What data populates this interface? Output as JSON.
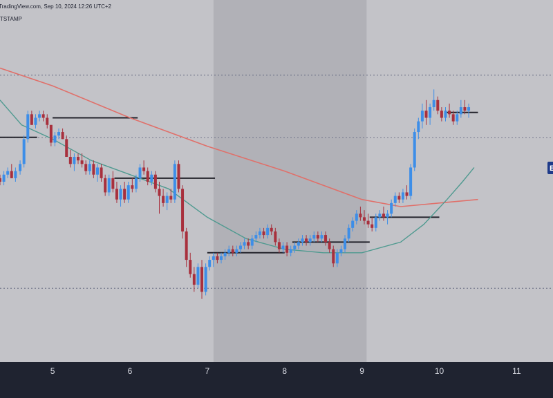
{
  "header": {
    "line1": "TradingView.com, Sep 10, 2024 12:26 UTC+2",
    "line2": "TSTAMP"
  },
  "price_tag": {
    "label": "E",
    "color": "#1e3a8a"
  },
  "colors": {
    "background": "#c3c3c8",
    "highlight_band": "#b1b1b7",
    "axis_bar": "#1f2330",
    "bull": "#3d8ee8",
    "bear": "#a8303d",
    "ema_long": "#e0706a",
    "ema_short": "#4f9a90",
    "level": "#23232b",
    "dotted": "#5a5f78"
  },
  "chart_data": {
    "type": "candlestick",
    "title": "",
    "xlabel": "",
    "ylabel": "",
    "x_ticks": [
      "5",
      "6",
      "7",
      "8",
      "9",
      "10",
      "11"
    ],
    "x_tick_values": [
      5,
      6,
      7,
      8,
      9,
      10,
      11
    ],
    "xlim": [
      4.32,
      11.47
    ],
    "ylim": [
      0,
      100
    ],
    "grid": false,
    "highlight_range": [
      7.08,
      9.06
    ],
    "dotted_levels": [
      80.0,
      62.4,
      20.0
    ],
    "candles_approx": [
      [
        4.32,
        51,
        52,
        49,
        50
      ],
      [
        4.37,
        50,
        53,
        49,
        52
      ],
      [
        4.42,
        52,
        54,
        51,
        53
      ],
      [
        4.47,
        53,
        55,
        51,
        51
      ],
      [
        4.52,
        51,
        54,
        50,
        53
      ],
      [
        4.58,
        53,
        56,
        52,
        55
      ],
      [
        4.63,
        55,
        63,
        54,
        62
      ],
      [
        4.68,
        62,
        70,
        61,
        69
      ],
      [
        4.73,
        69,
        70,
        66,
        66
      ],
      [
        4.78,
        66,
        69,
        65,
        68
      ],
      [
        4.83,
        68,
        70,
        67,
        69
      ],
      [
        4.88,
        69,
        70,
        67,
        68
      ],
      [
        4.93,
        68,
        69,
        65,
        66
      ],
      [
        4.98,
        66,
        63,
        60,
        61
      ],
      [
        5.03,
        61,
        64,
        60,
        63
      ],
      [
        5.08,
        63,
        65,
        62,
        64
      ],
      [
        5.13,
        64,
        65,
        62,
        62
      ],
      [
        5.18,
        62,
        63,
        57,
        57
      ],
      [
        5.23,
        57,
        59,
        54,
        55
      ],
      [
        5.28,
        55,
        58,
        53,
        57
      ],
      [
        5.33,
        57,
        58,
        55,
        56
      ],
      [
        5.38,
        56,
        58,
        54,
        55
      ],
      [
        5.43,
        55,
        56,
        52,
        53
      ],
      [
        5.48,
        53,
        56,
        52,
        55
      ],
      [
        5.53,
        55,
        56,
        51,
        52
      ],
      [
        5.58,
        52,
        55,
        50,
        54
      ],
      [
        5.63,
        54,
        55,
        50,
        51
      ],
      [
        5.68,
        51,
        52,
        46,
        47
      ],
      [
        5.73,
        47,
        52,
        46,
        51
      ],
      [
        5.78,
        51,
        53,
        47,
        48
      ],
      [
        5.83,
        48,
        50,
        44,
        45
      ],
      [
        5.88,
        45,
        49,
        43,
        48
      ],
      [
        5.93,
        48,
        50,
        44,
        45
      ],
      [
        5.98,
        45,
        50,
        44,
        49
      ],
      [
        6.03,
        49,
        51,
        47,
        48
      ],
      [
        6.08,
        48,
        52,
        47,
        51
      ],
      [
        6.13,
        51,
        55,
        50,
        54
      ],
      [
        6.18,
        54,
        56,
        52,
        53
      ],
      [
        6.23,
        53,
        54,
        49,
        50
      ],
      [
        6.28,
        50,
        53,
        49,
        52
      ],
      [
        6.33,
        52,
        53,
        47,
        48
      ],
      [
        6.38,
        48,
        50,
        41,
        46
      ],
      [
        6.43,
        46,
        48,
        43,
        44
      ],
      [
        6.48,
        44,
        47,
        42,
        46
      ],
      [
        6.53,
        46,
        48,
        44,
        45
      ],
      [
        6.58,
        45,
        56,
        44,
        55
      ],
      [
        6.63,
        55,
        56,
        47,
        48
      ],
      [
        6.68,
        48,
        49,
        34,
        36
      ],
      [
        6.73,
        36,
        37,
        26,
        28
      ],
      [
        6.78,
        28,
        30,
        23,
        24
      ],
      [
        6.83,
        24,
        26,
        19,
        21
      ],
      [
        6.88,
        21,
        27,
        20,
        26
      ],
      [
        6.93,
        26,
        28,
        17,
        19
      ],
      [
        6.98,
        19,
        27,
        18,
        26
      ],
      [
        7.03,
        26,
        29,
        25,
        28
      ],
      [
        7.08,
        28,
        30,
        26,
        29
      ],
      [
        7.13,
        29,
        30,
        27,
        28
      ],
      [
        7.18,
        28,
        30,
        27,
        29
      ],
      [
        7.23,
        29,
        31,
        28,
        30
      ],
      [
        7.28,
        30,
        32,
        29,
        31
      ],
      [
        7.33,
        31,
        32,
        29,
        30
      ],
      [
        7.38,
        30,
        32,
        29,
        31
      ],
      [
        7.43,
        31,
        33,
        30,
        32
      ],
      [
        7.48,
        32,
        34,
        31,
        33
      ],
      [
        7.53,
        33,
        34,
        31,
        32
      ],
      [
        7.58,
        32,
        35,
        31,
        34
      ],
      [
        7.63,
        34,
        36,
        33,
        35
      ],
      [
        7.68,
        35,
        37,
        34,
        36
      ],
      [
        7.73,
        36,
        37,
        34,
        35
      ],
      [
        7.78,
        35,
        38,
        34,
        37
      ],
      [
        7.83,
        37,
        38,
        35,
        36
      ],
      [
        7.88,
        36,
        37,
        32,
        33
      ],
      [
        7.93,
        33,
        34,
        30,
        31
      ],
      [
        7.98,
        31,
        33,
        30,
        32
      ],
      [
        8.03,
        32,
        33,
        29,
        30
      ],
      [
        8.08,
        30,
        32,
        29,
        31
      ],
      [
        8.13,
        31,
        33,
        30,
        32
      ],
      [
        8.18,
        32,
        34,
        31,
        33
      ],
      [
        8.23,
        33,
        35,
        32,
        34
      ],
      [
        8.28,
        34,
        35,
        32,
        33
      ],
      [
        8.33,
        33,
        35,
        32,
        34
      ],
      [
        8.38,
        34,
        36,
        33,
        35
      ],
      [
        8.43,
        35,
        36,
        33,
        34
      ],
      [
        8.48,
        34,
        36,
        33,
        35
      ],
      [
        8.53,
        35,
        36,
        32,
        33
      ],
      [
        8.58,
        33,
        34,
        30,
        31
      ],
      [
        8.63,
        31,
        32,
        26,
        27
      ],
      [
        8.68,
        27,
        31,
        26,
        30
      ],
      [
        8.73,
        30,
        32,
        29,
        31
      ],
      [
        8.78,
        31,
        35,
        30,
        34
      ],
      [
        8.83,
        34,
        38,
        33,
        37
      ],
      [
        8.88,
        37,
        40,
        36,
        39
      ],
      [
        8.93,
        39,
        42,
        38,
        41
      ],
      [
        8.98,
        41,
        43,
        39,
        40
      ],
      [
        9.03,
        40,
        42,
        38,
        39
      ],
      [
        9.08,
        39,
        41,
        37,
        38
      ],
      [
        9.13,
        38,
        40,
        36,
        37
      ],
      [
        9.18,
        37,
        41,
        36,
        40
      ],
      [
        9.23,
        40,
        42,
        39,
        41
      ],
      [
        9.28,
        41,
        43,
        39,
        40
      ],
      [
        9.33,
        40,
        42,
        38,
        41
      ],
      [
        9.38,
        41,
        45,
        40,
        44
      ],
      [
        9.43,
        44,
        47,
        43,
        46
      ],
      [
        9.48,
        46,
        47,
        44,
        45
      ],
      [
        9.53,
        45,
        48,
        44,
        47
      ],
      [
        9.58,
        47,
        49,
        45,
        46
      ],
      [
        9.63,
        46,
        55,
        45,
        54
      ],
      [
        9.68,
        54,
        65,
        53,
        64
      ],
      [
        9.73,
        64,
        68,
        62,
        67
      ],
      [
        9.78,
        67,
        72,
        65,
        70
      ],
      [
        9.83,
        70,
        73,
        66,
        68
      ],
      [
        9.88,
        68,
        72,
        66,
        71
      ],
      [
        9.93,
        71,
        76,
        70,
        73
      ],
      [
        9.98,
        73,
        74,
        69,
        70
      ],
      [
        10.03,
        70,
        71,
        67,
        68
      ],
      [
        10.08,
        68,
        71,
        67,
        70
      ],
      [
        10.13,
        70,
        72,
        68,
        69
      ],
      [
        10.18,
        69,
        70,
        66,
        67
      ],
      [
        10.23,
        67,
        70,
        66,
        69
      ],
      [
        10.28,
        69,
        73,
        68,
        71
      ],
      [
        10.33,
        71,
        73,
        69,
        70
      ],
      [
        10.38,
        70,
        72,
        68,
        71
      ]
    ],
    "moving_average_long_approx": [
      [
        4.32,
        82
      ],
      [
        5.0,
        77
      ],
      [
        6.0,
        68
      ],
      [
        7.0,
        60
      ],
      [
        8.0,
        53
      ],
      [
        9.0,
        45
      ],
      [
        9.5,
        43
      ],
      [
        10.0,
        44
      ],
      [
        10.5,
        45
      ]
    ],
    "moving_average_short_approx": [
      [
        4.32,
        73
      ],
      [
        4.6,
        66
      ],
      [
        5.0,
        62
      ],
      [
        5.5,
        56
      ],
      [
        6.0,
        52
      ],
      [
        6.5,
        48
      ],
      [
        7.0,
        40
      ],
      [
        7.5,
        34
      ],
      [
        8.0,
        31
      ],
      [
        8.5,
        30
      ],
      [
        9.0,
        30
      ],
      [
        9.5,
        33
      ],
      [
        9.8,
        38
      ],
      [
        10.1,
        45
      ],
      [
        10.3,
        50
      ],
      [
        10.45,
        54
      ]
    ],
    "support_resistance_levels": [
      {
        "x1": 4.32,
        "x2": 4.8,
        "y": 62.5
      },
      {
        "x1": 5.0,
        "x2": 6.1,
        "y": 68.0
      },
      {
        "x1": 5.8,
        "x2": 7.1,
        "y": 51.0
      },
      {
        "x1": 7.0,
        "x2": 8.0,
        "y": 30.0
      },
      {
        "x1": 8.1,
        "x2": 9.1,
        "y": 33.0
      },
      {
        "x1": 9.1,
        "x2": 10.0,
        "y": 40.0
      },
      {
        "x1": 10.1,
        "x2": 10.5,
        "y": 69.5
      }
    ]
  }
}
